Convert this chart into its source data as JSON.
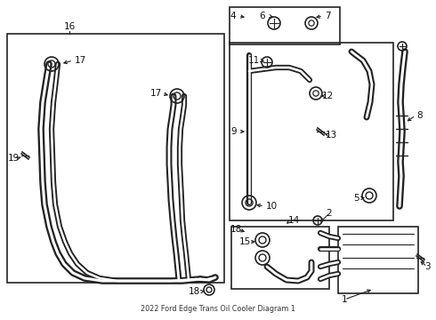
{
  "title": "2022 Ford Edge Trans Oil Cooler Diagram 1",
  "bg_color": "#ffffff",
  "line_color": "#222222",
  "fig_width": 4.9,
  "fig_height": 3.6,
  "dpi": 100
}
